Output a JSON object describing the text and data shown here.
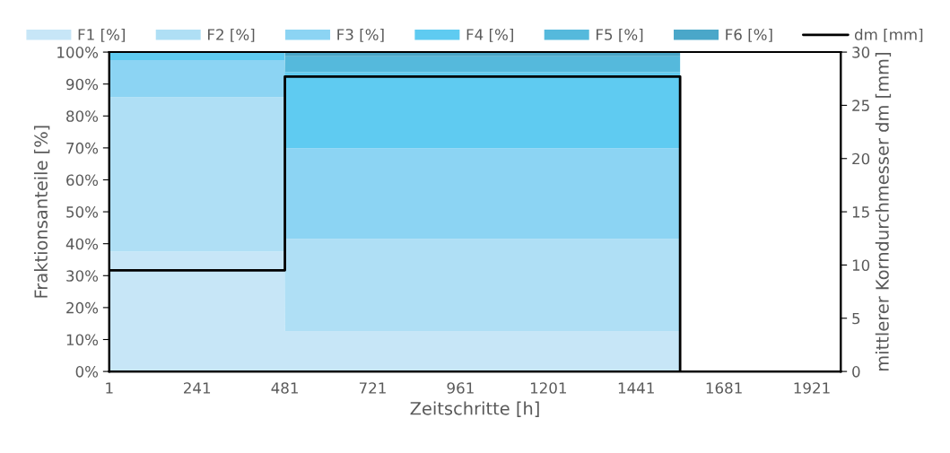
{
  "chart_data": {
    "type": "area",
    "stacked": true,
    "xlabel": "Zeitschritte [h]",
    "ylabel": "Fraktionsanteile [%]",
    "y2label": "mittlerer Korndurchmesser dm [mm]",
    "x": [
      1,
      480,
      481,
      1561
    ],
    "series": [
      {
        "name": "F1 [%]",
        "color": "#c7e6f7",
        "values": [
          37.5,
          37.5,
          12.7,
          12.7
        ]
      },
      {
        "name": "F2 [%]",
        "color": "#afdff5",
        "values": [
          48.4,
          48.4,
          28.8,
          28.8
        ]
      },
      {
        "name": "F3 [%]",
        "color": "#8cd4f3",
        "values": [
          11.6,
          11.6,
          28.4,
          28.4
        ]
      },
      {
        "name": "F4 [%]",
        "color": "#5fcbf1",
        "values": [
          2.5,
          2.5,
          23.8,
          23.8
        ]
      },
      {
        "name": "F5 [%]",
        "color": "#55b9dc",
        "values": [
          null,
          null,
          5.0,
          5.0
        ]
      },
      {
        "name": "F6 [%]",
        "color": "#4aa7c9",
        "values": [
          null,
          null,
          1.2,
          1.2
        ]
      },
      {
        "name": "dm [mm]",
        "color": "#000000",
        "type": "step",
        "axis": "y2",
        "x": [
          1,
          481,
          1561
        ],
        "values": [
          9.5,
          27.7,
          0
        ]
      }
    ],
    "xlim": [
      1,
      2000
    ],
    "xticks": [
      1,
      241,
      481,
      721,
      961,
      1201,
      1441,
      1681,
      1921
    ],
    "ylim": [
      0,
      100
    ],
    "yticks": [
      {
        "value": 0,
        "label": "0%"
      },
      {
        "value": 10,
        "label": "10%"
      },
      {
        "value": 20,
        "label": "20%"
      },
      {
        "value": 30,
        "label": "30%"
      },
      {
        "value": 40,
        "label": "40%"
      },
      {
        "value": 50,
        "label": "50%"
      },
      {
        "value": 60,
        "label": "60%"
      },
      {
        "value": 70,
        "label": "70%"
      },
      {
        "value": 80,
        "label": "80%"
      },
      {
        "value": 90,
        "label": "90%"
      },
      {
        "value": 100,
        "label": "100%"
      }
    ],
    "y2lim": [
      0,
      30
    ],
    "y2ticks": [
      0,
      5,
      10,
      15,
      20,
      25,
      30
    ],
    "legend": "top",
    "grid": false
  }
}
